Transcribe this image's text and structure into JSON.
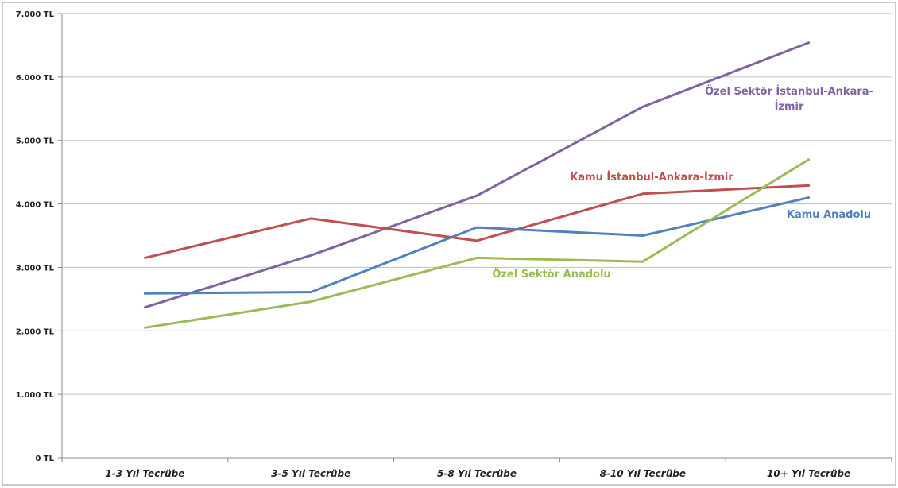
{
  "chart_data": {
    "type": "line",
    "title": "",
    "xlabel": "",
    "ylabel": "",
    "categories": [
      "1-3 Yıl Tecrübe",
      "3-5 Yıl Tecrübe",
      "5-8 Yıl Tecrübe",
      "8-10 Yıl Tecrübe",
      "10+ Yıl Tecrübe"
    ],
    "y_ticks": [
      "0 TL",
      "1.000 TL",
      "2.000 TL",
      "3.000 TL",
      "4.000 TL",
      "5.000 TL",
      "6.000 TL",
      "7.000 TL"
    ],
    "ylim": [
      0,
      7000
    ],
    "grid": true,
    "legend": "inline-labels",
    "series": [
      {
        "name": "Özel Sektör İstanbul-Ankara-İzmir",
        "label_lines": [
          "Özel Sektör İstanbul-Ankara-",
          "İzmir"
        ],
        "color": "#8064A2",
        "values": [
          2370,
          3190,
          4130,
          5530,
          6540
        ]
      },
      {
        "name": "Kamu İstanbul-Ankara-İzmir",
        "label_lines": [
          "Kamu İstanbul-Ankara-İzmir"
        ],
        "color": "#C0504D",
        "values": [
          3150,
          3770,
          3420,
          4160,
          4290
        ]
      },
      {
        "name": "Kamu Anadolu",
        "label_lines": [
          "Kamu Anadolu"
        ],
        "color": "#4F81BD",
        "values": [
          2590,
          2610,
          3630,
          3500,
          4100
        ]
      },
      {
        "name": "Özel Sektör Anadolu",
        "label_lines": [
          "Özel Sektör Anadolu"
        ],
        "color": "#9BBB59",
        "values": [
          2050,
          2460,
          3150,
          3090,
          4700
        ]
      }
    ]
  }
}
